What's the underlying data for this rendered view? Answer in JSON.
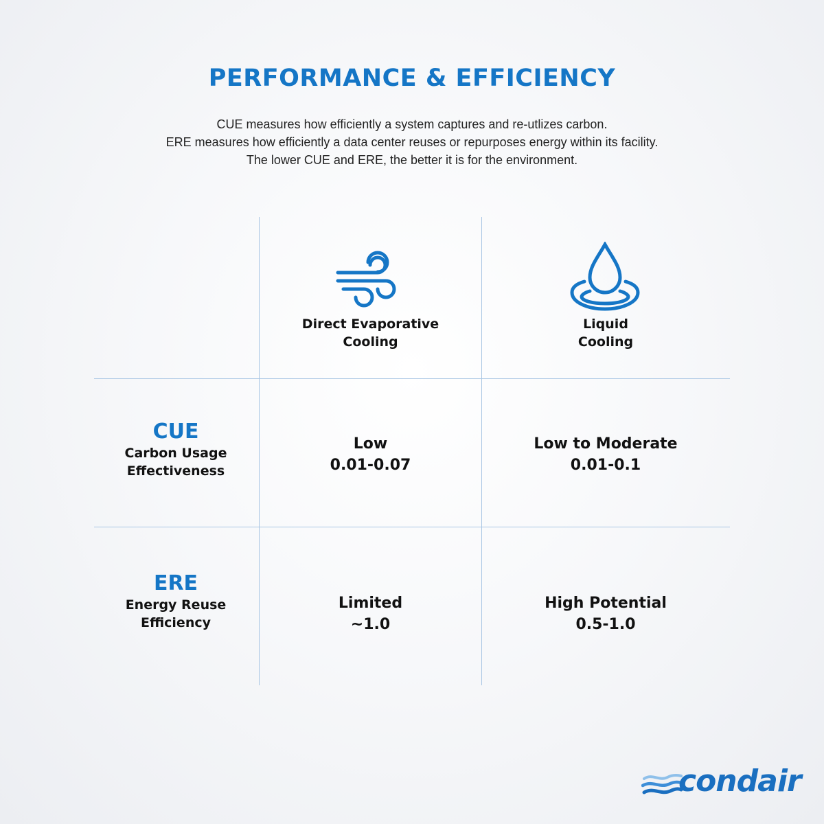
{
  "title": "PERFORMANCE & EFFICIENCY",
  "intro": {
    "line1": "CUE measures how efficiently a system captures and re-utlizes carbon.",
    "line2": "ERE measures how efficiently a data center reuses or repurposes energy within its facility.",
    "line3": "The lower CUE and ERE, the better it is for the environment."
  },
  "columns": [
    {
      "icon": "wind-icon",
      "line1": "Direct Evaporative",
      "line2": "Cooling"
    },
    {
      "icon": "water-drop-icon",
      "line1": "Liquid",
      "line2": "Cooling"
    }
  ],
  "rows": [
    {
      "abbr": "CUE",
      "name_line1": "Carbon Usage",
      "name_line2": "Effectiveness",
      "cells": [
        {
          "label": "Low",
          "value": "0.01-0.07"
        },
        {
          "label": "Low to Moderate",
          "value": "0.01-0.1"
        }
      ]
    },
    {
      "abbr": "ERE",
      "name_line1": "Energy Reuse",
      "name_line2": "Efficiency",
      "cells": [
        {
          "label": "Limited",
          "value": "~1.0"
        },
        {
          "label": "High Potential",
          "value": "0.5-1.0"
        }
      ]
    }
  ],
  "brand": {
    "name": "condair",
    "color": "#1a6fc0",
    "accent": "#1576c6"
  }
}
